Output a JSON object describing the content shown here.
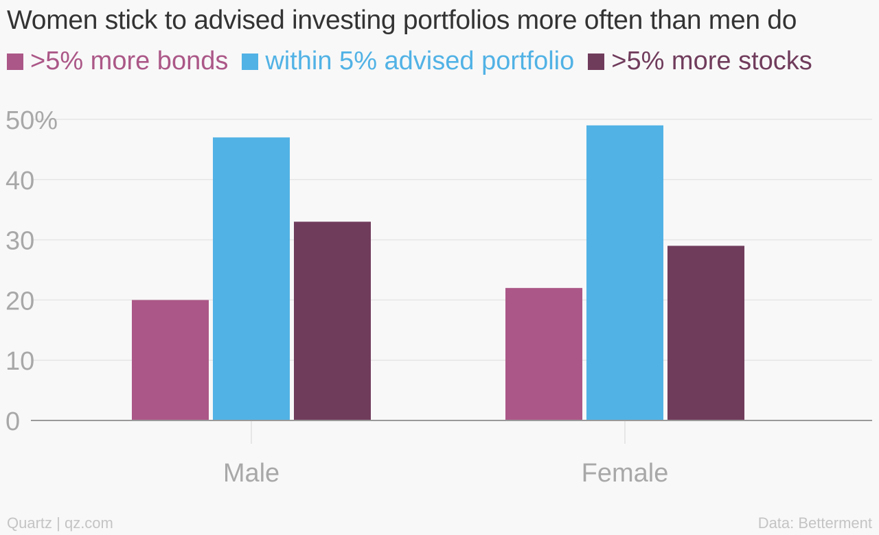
{
  "chart_data": {
    "type": "bar",
    "title": "Women stick to advised investing portfolios more often than men do",
    "categories": [
      "Male",
      "Female"
    ],
    "series": [
      {
        "name": ">5% more bonds",
        "color": "#ab5787",
        "values": [
          20,
          22
        ]
      },
      {
        "name": "within 5% advised portfolio",
        "color": "#51b2e5",
        "values": [
          47,
          49
        ]
      },
      {
        "name": ">5% more stocks",
        "color": "#703c5c",
        "values": [
          33,
          29
        ]
      }
    ],
    "yticks": [
      "0",
      "10",
      "20",
      "30",
      "40",
      "50%"
    ],
    "ylim": [
      0,
      50
    ],
    "xlabel": "",
    "ylabel": "",
    "grid": true,
    "legend": "top-left"
  },
  "footer": {
    "source_left": "Quartz | qz.com",
    "source_right": "Data: Betterment"
  }
}
